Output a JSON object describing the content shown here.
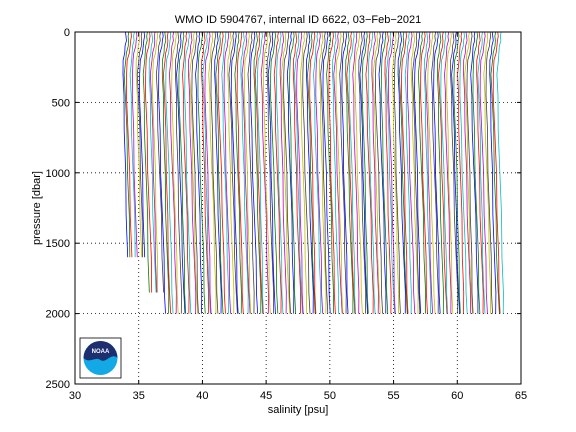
{
  "chart_data": {
    "type": "line",
    "title": "WMO ID 5904767, internal ID 6622, 03−Feb−2021",
    "xlabel": "salinity [psu]",
    "ylabel": "pressure [dbar]",
    "xlim": [
      30,
      65
    ],
    "ylim": [
      2500,
      0
    ],
    "y_reversed": true,
    "xticks": [
      30,
      35,
      40,
      45,
      50,
      55,
      60,
      65
    ],
    "yticks": [
      0,
      500,
      1000,
      1500,
      2000,
      2500
    ],
    "grid": "dotted",
    "profile_layout": "waterfall (each successive profile offset in salinity)",
    "profile_count": 144,
    "first_profile_surface_salinity": 34.0,
    "last_profile_surface_salinity": 63.4,
    "profile_max_pressure": 2000,
    "series_colors": [
      "#0000ff",
      "#008000",
      "#ff0000",
      "#00bfbf",
      "#bf00bf",
      "#bfbf00",
      "#404040"
    ]
  },
  "logo": {
    "text": "NOAA",
    "colors": {
      "dark": "#1d2f6f",
      "light": "#12a9e6",
      "frame": "#000000"
    }
  }
}
